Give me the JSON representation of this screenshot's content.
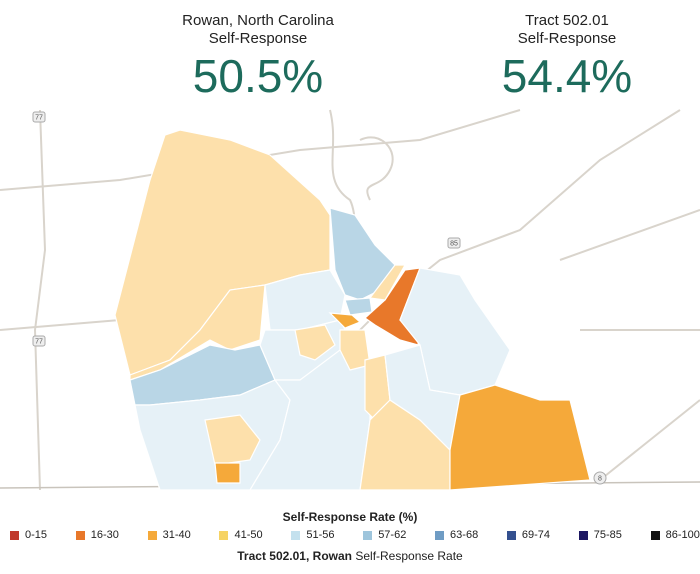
{
  "stats": [
    {
      "place": "Rowan, North Carolina",
      "measure": "Self-Response",
      "value": "50.5%"
    },
    {
      "place": "Tract 502.01",
      "measure": "Self-Response",
      "value": "54.4%"
    }
  ],
  "map": {
    "highways": [
      "77",
      "85",
      "77",
      "8"
    ]
  },
  "legend": {
    "title": "Self-Response Rate (%)",
    "items": [
      {
        "label": "0-15",
        "color": "#c0392b"
      },
      {
        "label": "16-30",
        "color": "#e8782a"
      },
      {
        "label": "31-40",
        "color": "#f5a93a"
      },
      {
        "label": "41-50",
        "color": "#f6d364"
      },
      {
        "label": "51-56",
        "color": "#c4e1ee"
      },
      {
        "label": "57-62",
        "color": "#9ec5dc"
      },
      {
        "label": "63-68",
        "color": "#6f9cc4"
      },
      {
        "label": "69-74",
        "color": "#34508f"
      },
      {
        "label": "75-85",
        "color": "#1d1762"
      },
      {
        "label": "86-100",
        "color": "#111111"
      }
    ]
  },
  "caption": {
    "bold": "Tract 502.01, Rowan",
    "rest": "Self-Response Rate"
  }
}
